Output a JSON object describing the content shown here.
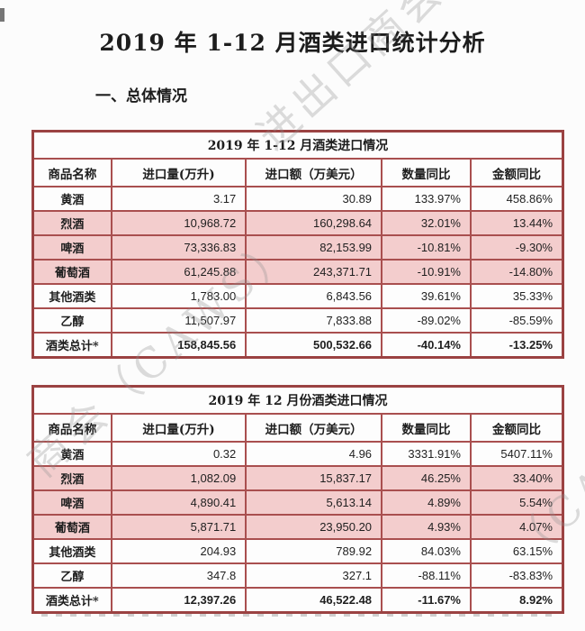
{
  "document": {
    "title": "2019 年 1-12 月酒类进口统计分析",
    "section_heading": "一、总体情况"
  },
  "table_columns": [
    "商品名称",
    "进口量(万升)",
    "进口额（万美元）",
    "数量同比",
    "金额同比"
  ],
  "tables": [
    {
      "title": "2019 年 1-12 月酒类进口情况",
      "rows": [
        [
          "黄酒",
          "3.17",
          "30.89",
          "133.97%",
          "458.86%"
        ],
        [
          "烈酒",
          "10,968.72",
          "160,298.64",
          "32.01%",
          "13.44%"
        ],
        [
          "啤酒",
          "73,336.83",
          "82,153.99",
          "-10.81%",
          "-9.30%"
        ],
        [
          "葡萄酒",
          "61,245.88",
          "243,371.71",
          "-10.91%",
          "-14.80%"
        ],
        [
          "其他酒类",
          "1,783.00",
          "6,843.56",
          "39.61%",
          "35.33%"
        ],
        [
          "乙醇",
          "11,507.97",
          "7,833.88",
          "-89.02%",
          "-85.59%"
        ],
        [
          "酒类总计*",
          "158,845.56",
          "500,532.66",
          "-40.14%",
          "-13.25%"
        ]
      ],
      "pink_rows": [
        1,
        2,
        3
      ],
      "total_rows": [
        6
      ]
    },
    {
      "title": "2019 年 12 月份酒类进口情况",
      "rows": [
        [
          "黄酒",
          "0.32",
          "4.96",
          "3331.91%",
          "5407.11%"
        ],
        [
          "烈酒",
          "1,082.09",
          "15,837.17",
          "46.25%",
          "33.40%"
        ],
        [
          "啤酒",
          "4,890.41",
          "5,613.14",
          "4.89%",
          "5.54%"
        ],
        [
          "葡萄酒",
          "5,871.71",
          "23,950.20",
          "4.93%",
          "4.07%"
        ],
        [
          "其他酒类",
          "204.93",
          "789.92",
          "84.03%",
          "63.15%"
        ],
        [
          "乙醇",
          "347.8",
          "327.1",
          "-88.11%",
          "-83.83%"
        ],
        [
          "酒类总计*",
          "12,397.26",
          "46,522.48",
          "-11.67%",
          "8.92%"
        ]
      ],
      "pink_rows": [
        1,
        2,
        3
      ],
      "total_rows": [
        6
      ]
    }
  ],
  "watermarks": [
    {
      "text": "进出口商会"
    },
    {
      "text": "商会（CAWS）"
    },
    {
      "text": "（CAWS）"
    }
  ],
  "colors": {
    "table_border_outer": "#9b4242",
    "table_border_inner": "#a94f4f",
    "row_highlight_pink": "#f3cdcd",
    "text": "#1d1d1d",
    "watermark_gray": "#8f8f8f"
  }
}
